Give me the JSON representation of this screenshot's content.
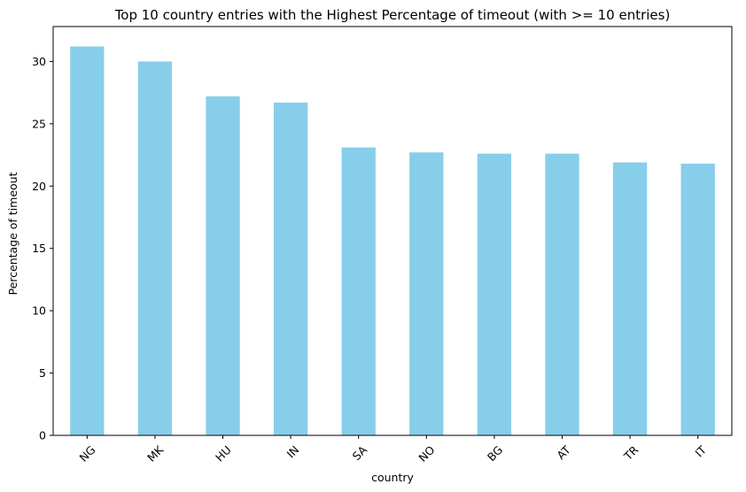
{
  "chart_data": {
    "type": "bar",
    "title": "Top 10 country entries with the Highest Percentage of timeout (with >= 10 entries)",
    "xlabel": "country",
    "ylabel": "Percentage of timeout",
    "categories": [
      "NG",
      "MK",
      "HU",
      "IN",
      "SA",
      "NO",
      "BG",
      "AT",
      "TR",
      "IT"
    ],
    "values": [
      31.2,
      30.0,
      27.2,
      26.7,
      23.1,
      22.7,
      22.6,
      22.6,
      21.9,
      21.8
    ],
    "ylim": [
      0,
      32.8
    ],
    "yticks": [
      0,
      5,
      10,
      15,
      20,
      25,
      30
    ],
    "grid": false,
    "legend": "none",
    "colors": {
      "bar": "#87ceeb",
      "axis": "#000000"
    }
  }
}
